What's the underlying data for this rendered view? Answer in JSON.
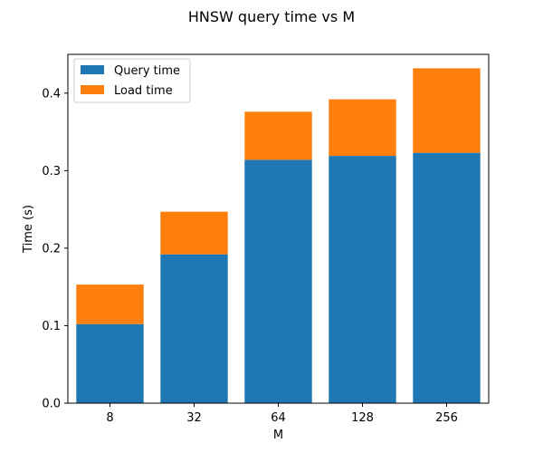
{
  "chart_data": {
    "type": "bar",
    "stacked": true,
    "title": "HNSW query time vs M",
    "xlabel": "M",
    "ylabel": "Time (s)",
    "categories": [
      "8",
      "32",
      "64",
      "128",
      "256"
    ],
    "series": [
      {
        "name": "Query time",
        "color": "#1f77b4",
        "values": [
          0.102,
          0.192,
          0.314,
          0.319,
          0.323
        ]
      },
      {
        "name": "Load time",
        "color": "#ff7f0e",
        "values": [
          0.051,
          0.055,
          0.062,
          0.073,
          0.109
        ]
      }
    ],
    "ylim": [
      0,
      0.45
    ],
    "yticks": [
      "0.0",
      "0.1",
      "0.2",
      "0.3",
      "0.4"
    ],
    "grid": false,
    "legend": "top-left"
  }
}
